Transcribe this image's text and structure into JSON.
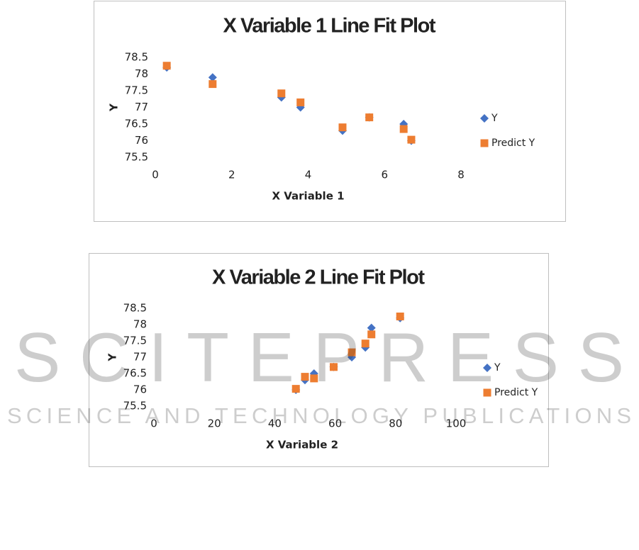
{
  "chart_data": [
    {
      "type": "scatter",
      "title": "X Variable 1 Line Fit  Plot",
      "x_label": "X Variable 1",
      "y_label": "Y",
      "x": [
        0.3,
        1.5,
        3.3,
        3.8,
        4.9,
        5.6,
        6.5,
        6.7
      ],
      "series": [
        {
          "name": "Y",
          "color": "#4472c4",
          "marker": "diamond",
          "values": [
            78.2,
            77.9,
            77.3,
            77.0,
            76.3,
            76.7,
            76.5,
            76.0
          ]
        },
        {
          "name": "Predict Y",
          "color": "#ed7d31",
          "marker": "square",
          "values": [
            78.25,
            77.7,
            77.42,
            77.15,
            76.4,
            76.7,
            76.35,
            76.03
          ]
        }
      ],
      "xlim": [
        0,
        8
      ],
      "xticks": [
        0,
        2,
        4,
        6,
        8
      ],
      "ylim": [
        75.5,
        78.5
      ],
      "yticks": [
        75.5,
        76,
        76.5,
        77,
        77.5,
        78,
        78.5
      ],
      "grid": false,
      "legend": "right"
    },
    {
      "type": "scatter",
      "title": "X Variable 2 Line Fit  Plot",
      "x_label": "X Variable 2",
      "y_label": "Y",
      "x": [
        47,
        50,
        53,
        59.5,
        65.5,
        70,
        72,
        81.5
      ],
      "series": [
        {
          "name": "Y",
          "color": "#4472c4",
          "marker": "diamond",
          "values": [
            76.0,
            76.3,
            76.5,
            76.7,
            77.0,
            77.3,
            77.9,
            78.2
          ]
        },
        {
          "name": "Predict Y",
          "color": "#ed7d31",
          "marker": "square",
          "values": [
            76.03,
            76.4,
            76.35,
            76.7,
            77.15,
            77.42,
            77.7,
            78.25
          ]
        }
      ],
      "xlim": [
        0,
        100
      ],
      "xticks": [
        0,
        20,
        40,
        60,
        80,
        100
      ],
      "ylim": [
        75.5,
        78.5
      ],
      "yticks": [
        75.5,
        76,
        76.5,
        77,
        77.5,
        78,
        78.5
      ],
      "grid": false,
      "legend": "right"
    }
  ],
  "watermark": {
    "title": "SCITEPRESS",
    "subtitle": "SCIENCE AND TECHNOLOGY PUBLICATIONS"
  }
}
